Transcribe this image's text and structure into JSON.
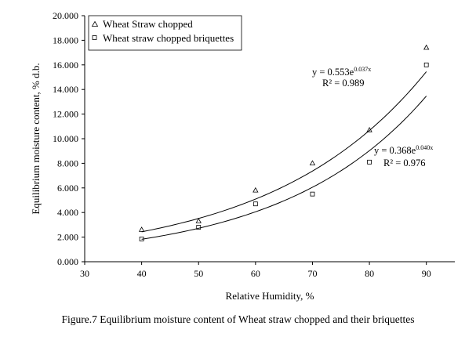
{
  "chart_data": {
    "type": "scatter",
    "title": "",
    "xlabel": "Relative Humidity, %",
    "ylabel": "Equilibrium moisture content, % d.b.",
    "xlim": [
      30,
      95
    ],
    "ylim": [
      0,
      20
    ],
    "xticks": [
      "30",
      "40",
      "50",
      "60",
      "70",
      "80",
      "90"
    ],
    "yticks": [
      "0.000",
      "2.000",
      "4.000",
      "6.000",
      "8.000",
      "10.000",
      "12.000",
      "14.000",
      "16.000",
      "18.000",
      "20.000"
    ],
    "grid": false,
    "legend_position": "top-left",
    "series": [
      {
        "name": "Wheat Straw chopped",
        "marker": "triangle",
        "x": [
          40,
          50,
          60,
          70,
          80,
          90
        ],
        "y": [
          2.6,
          3.3,
          5.8,
          8.0,
          10.7,
          17.4
        ],
        "trendline": {
          "type": "exponential",
          "a": 0.553,
          "b": 0.037,
          "equation": "y = 0.553e",
          "exponent": "0.037x",
          "r2": "R² = 0.989"
        }
      },
      {
        "name": "Wheat straw chopped briquettes",
        "marker": "square",
        "x": [
          40,
          50,
          60,
          70,
          80,
          90
        ],
        "y": [
          1.85,
          2.8,
          4.7,
          5.5,
          8.1,
          16.0
        ],
        "trendline": {
          "type": "exponential",
          "a": 0.368,
          "b": 0.04,
          "equation": "y = 0.368e",
          "exponent": "0.040x",
          "r2": "R² = 0.976"
        }
      }
    ]
  },
  "caption": "Figure.7 Equilibrium moisture content of Wheat straw chopped and their briquettes"
}
